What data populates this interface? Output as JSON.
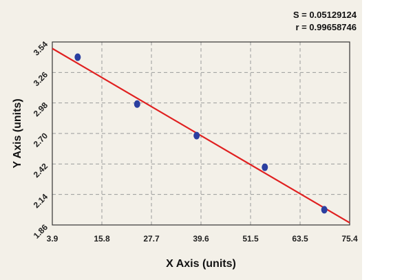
{
  "chart_data": {
    "type": "scatter",
    "xlabel": "X Axis (units)",
    "ylabel": "Y Axis (units)",
    "xlim": [
      3.9,
      75.4
    ],
    "ylim": [
      1.86,
      3.54
    ],
    "xticks": [
      "3.9",
      "15.8",
      "27.7",
      "39.6",
      "51.5",
      "63.5",
      "75.4"
    ],
    "yticks": [
      "1.86",
      "2.14",
      "2.42",
      "2.70",
      "2.98",
      "3.26",
      "3.54"
    ],
    "grid": true,
    "stats": {
      "s_label": "S = 0.05129124",
      "r_label": "r = 0.99658746"
    },
    "series": [
      {
        "kind": "points",
        "color": "#2b3fa0",
        "points": [
          {
            "x": 10.0,
            "y": 3.4
          },
          {
            "x": 24.3,
            "y": 2.97
          },
          {
            "x": 38.6,
            "y": 2.68
          },
          {
            "x": 55.0,
            "y": 2.39
          },
          {
            "x": 69.3,
            "y": 2.0
          }
        ]
      },
      {
        "kind": "fit-line",
        "color": "#e02020",
        "points": [
          {
            "x": 3.9,
            "y": 3.48
          },
          {
            "x": 75.4,
            "y": 1.88
          }
        ]
      }
    ]
  }
}
